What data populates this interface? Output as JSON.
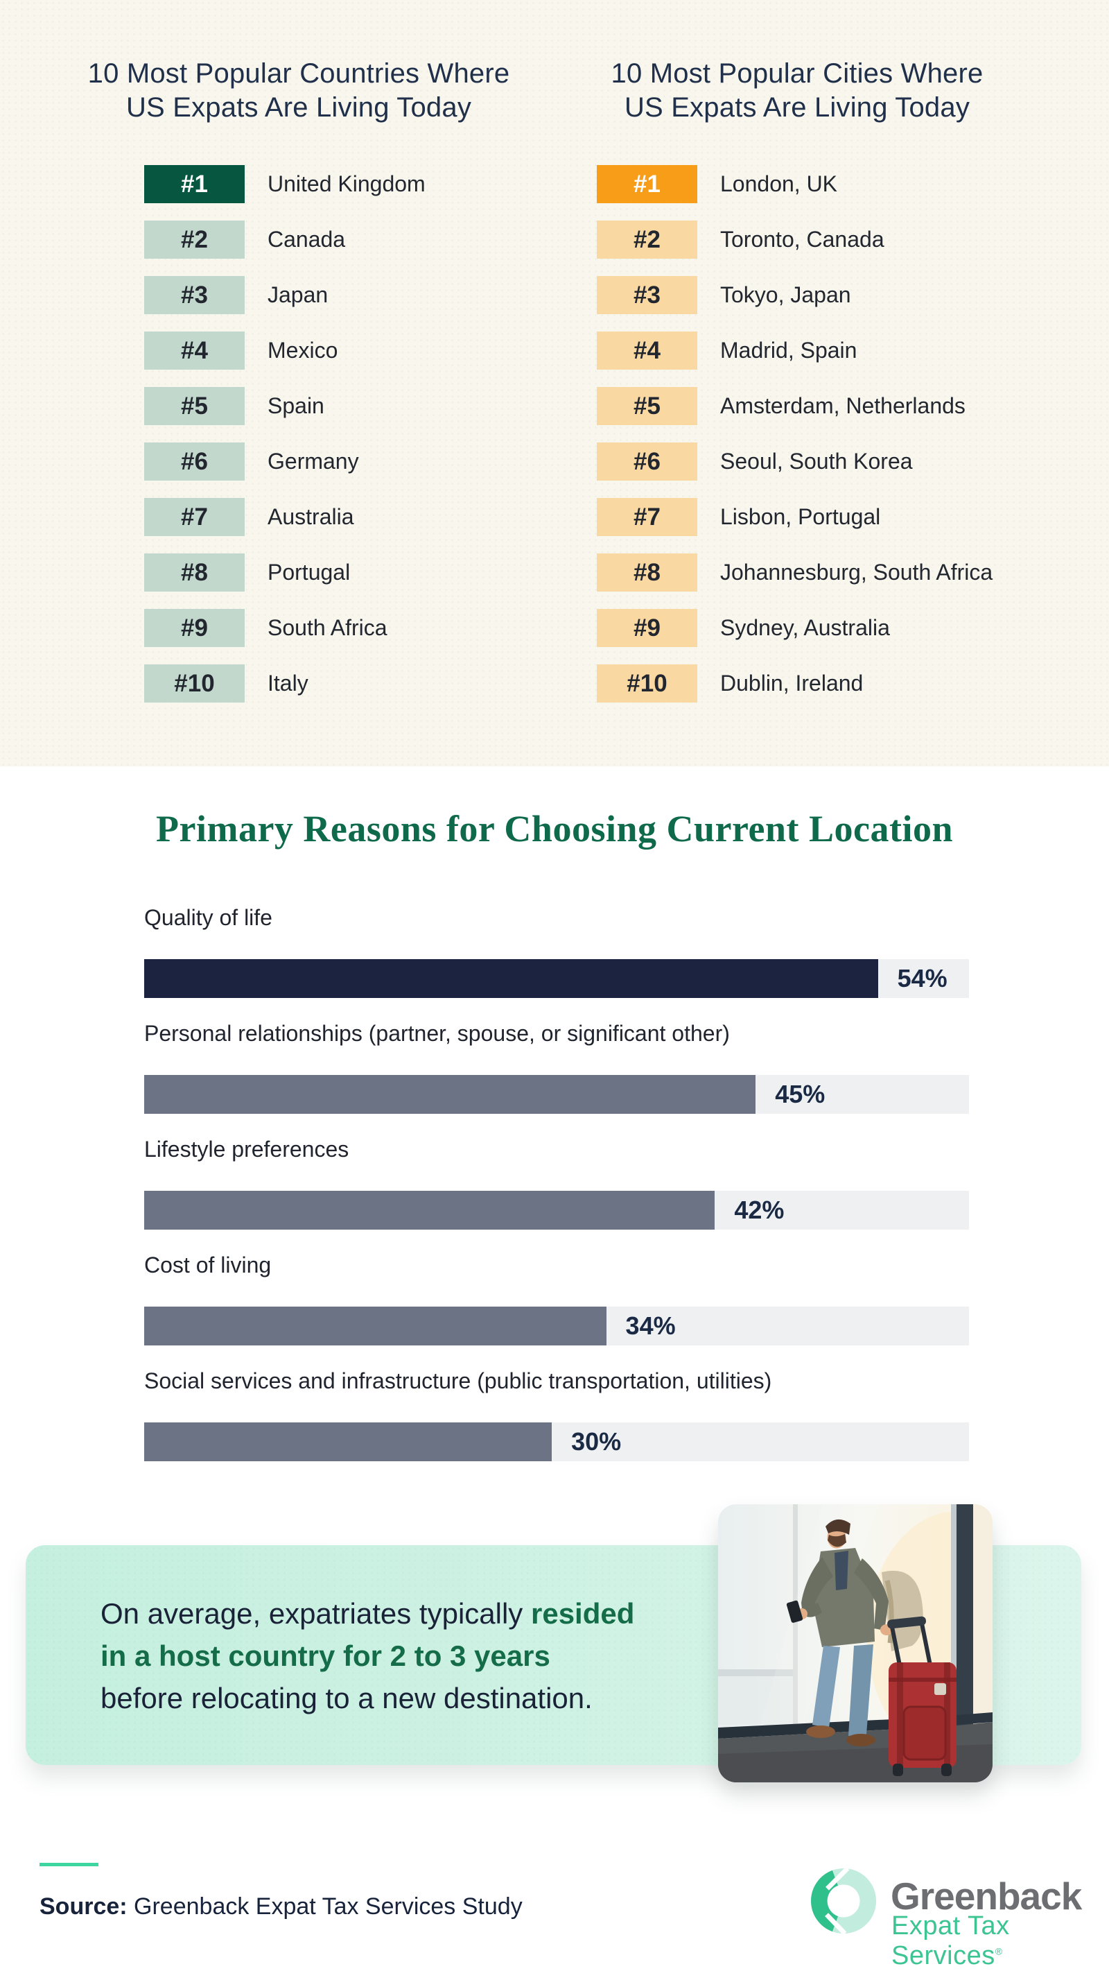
{
  "ranking_lists": {
    "countries": {
      "title": [
        "10 Most Popular Countries Where",
        "US Expats Are Living Today"
      ],
      "badge_color_top": "#075740",
      "badge_color_rest": "#C3D8CD",
      "items": [
        {
          "rank": "#1",
          "label": "United Kingdom"
        },
        {
          "rank": "#2",
          "label": "Canada"
        },
        {
          "rank": "#3",
          "label": "Japan"
        },
        {
          "rank": "#4",
          "label": "Mexico"
        },
        {
          "rank": "#5",
          "label": "Spain"
        },
        {
          "rank": "#6",
          "label": "Germany"
        },
        {
          "rank": "#7",
          "label": "Australia"
        },
        {
          "rank": "#8",
          "label": "Portugal"
        },
        {
          "rank": "#9",
          "label": "South Africa"
        },
        {
          "rank": "#10",
          "label": "Italy"
        }
      ]
    },
    "cities": {
      "title": [
        "10 Most Popular Cities Where",
        "US Expats Are Living Today"
      ],
      "badge_color_top": "#F89D17",
      "badge_color_rest": "#FAD8A2",
      "items": [
        {
          "rank": "#1",
          "label": "London, UK"
        },
        {
          "rank": "#2",
          "label": "Toronto, Canada"
        },
        {
          "rank": "#3",
          "label": "Tokyo, Japan"
        },
        {
          "rank": "#4",
          "label": "Madrid, Spain"
        },
        {
          "rank": "#5",
          "label": "Amsterdam, Netherlands"
        },
        {
          "rank": "#6",
          "label": "Seoul, South Korea"
        },
        {
          "rank": "#7",
          "label": "Lisbon, Portugal"
        },
        {
          "rank": "#8",
          "label": "Johannesburg, South Africa"
        },
        {
          "rank": "#9",
          "label": "Sydney, Australia"
        },
        {
          "rank": "#10",
          "label": "Dublin, Ireland"
        }
      ]
    }
  },
  "chart_data": {
    "type": "bar",
    "orientation": "horizontal",
    "title": "Primary Reasons for Choosing Current Location",
    "title_color": "#0F6A4B",
    "categories": [
      "Quality of life",
      "Personal relationships (partner, spouse, or significant other)",
      "Lifestyle preferences",
      "Cost of living",
      "Social services and infrastructure (public transportation, utilities)"
    ],
    "values": [
      54,
      45,
      42,
      34,
      30
    ],
    "value_suffix": "%",
    "xlim": [
      0,
      60.7
    ],
    "grid": false,
    "legend": false,
    "colors": {
      "first_bar": "#1B2340",
      "other_bars": "#6B7384",
      "track": "#EFF0F2",
      "value_text": "#1B2A44"
    }
  },
  "callout": {
    "background_color": "#C9F0E1",
    "highlight_color": "#156C49",
    "lines": [
      [
        {
          "t": "On average, expatriates typically ",
          "b": false
        },
        {
          "t": "resided",
          "b": true
        }
      ],
      [
        {
          "t": "in a host country for 2 to 3 years",
          "b": true
        }
      ],
      [
        {
          "t": "before relocating to a new destination.",
          "b": false
        }
      ]
    ]
  },
  "footer": {
    "source_label": "Source:",
    "source_text": " Greenback Expat Tax Services Study",
    "accent_line_color": "#3ED6A0",
    "logo": {
      "name": "Greenback",
      "subtitle": "Expat Tax Services",
      "registered_mark": "®",
      "name_color": "#6D6E71",
      "subtitle_color": "#3DC493",
      "mark_teal": "#2FC08C",
      "mark_mint": "#C2ECDD"
    }
  }
}
